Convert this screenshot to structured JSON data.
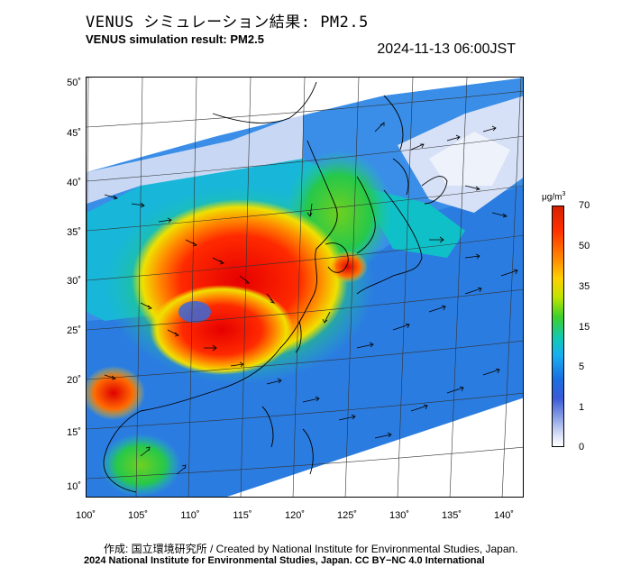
{
  "header": {
    "title_jp": "VENUS シミュレーション結果: PM2.5",
    "title_en": "VENUS simulation result: PM2.5",
    "timestamp": "2024-11-13 06:00JST"
  },
  "map": {
    "lat_labels": [
      "50˚",
      "45˚",
      "40˚",
      "35˚",
      "30˚",
      "25˚",
      "20˚",
      "15˚",
      "10˚"
    ],
    "lon_labels": [
      "100˚",
      "105˚",
      "110˚",
      "115˚",
      "120˚",
      "125˚",
      "130˚",
      "135˚",
      "140˚"
    ]
  },
  "colorbar": {
    "unit": "μg/m",
    "unit_sup": "3",
    "ticks": [
      "70",
      "50",
      "35",
      "15",
      "5",
      "1",
      "0"
    ]
  },
  "footer": {
    "credit": "作成: 国立環境研究所 / Created by National Institute for Environmental Studies, Japan.",
    "license": "2024 National Institute for Environmental Studies, Japan. CC BY−NC 4.0 International"
  }
}
